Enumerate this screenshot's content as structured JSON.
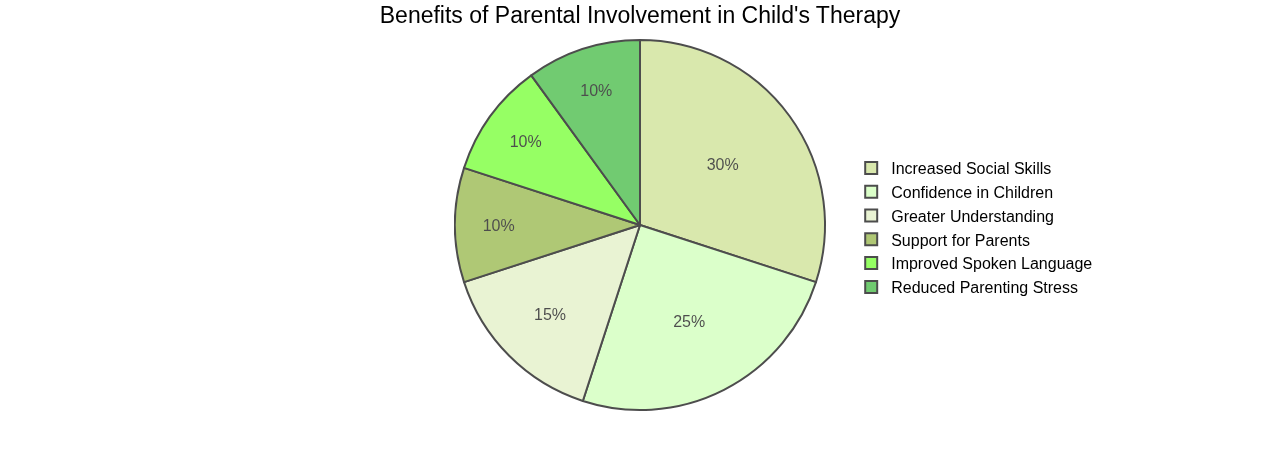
{
  "chart_data": {
    "type": "pie",
    "title": "Benefits of Parental Involvement in Child's Therapy",
    "categories": [
      "Increased Social Skills",
      "Confidence in Children",
      "Greater Understanding",
      "Support for Parents",
      "Improved Spoken Language",
      "Reduced Parenting Stress"
    ],
    "values": [
      30,
      25,
      15,
      10,
      10,
      10
    ],
    "value_labels": [
      "30%",
      "25%",
      "15%",
      "10%",
      "10%",
      "10%"
    ],
    "colors": [
      "#c9df8a",
      "#ccffb3",
      "#e0eec0",
      "#8db03a",
      "#69ff21",
      "#34b534"
    ],
    "data_labels": true,
    "legend": "right"
  }
}
